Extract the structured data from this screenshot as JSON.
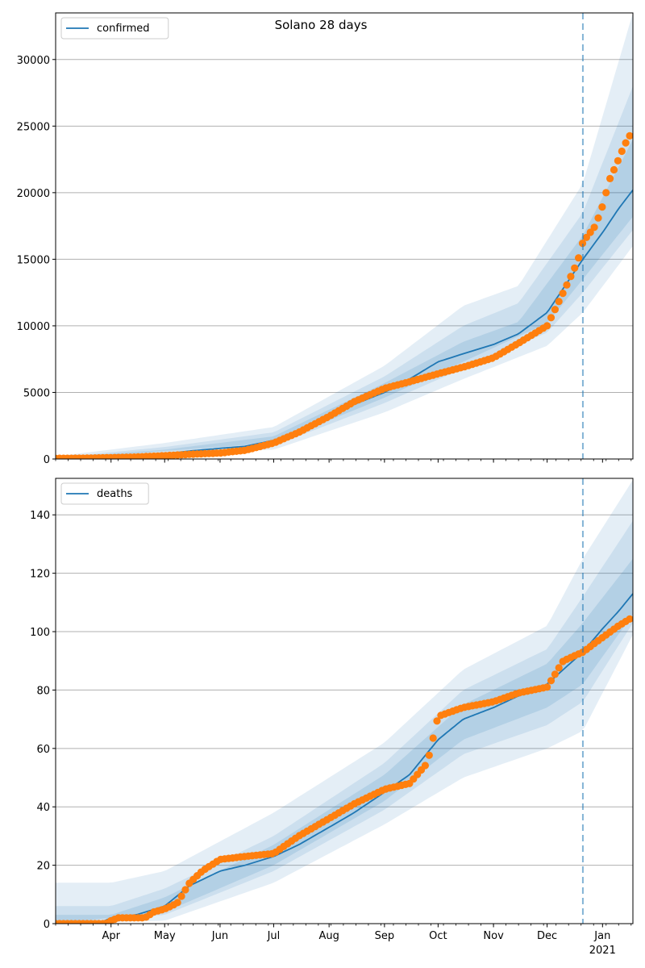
{
  "figure": {
    "title": "Solano 28 days"
  },
  "colors": {
    "band": "#1f77b4",
    "median": "#1f77b4",
    "observed": "#ff7f0e",
    "grid": "#b0b0b0",
    "forecast_line": "#1f77b4"
  },
  "chart_data": [
    {
      "type": "line",
      "title": "Solano 28 days",
      "legend": {
        "placement": "top-left",
        "entries": [
          "confirmed"
        ]
      },
      "grid": "horizontal",
      "x_start": "2020-03-01",
      "x_end": "2021-01-18",
      "forecast_start": "2020-12-21",
      "ylim": [
        0,
        33500
      ],
      "yticks": [
        0,
        5000,
        10000,
        15000,
        20000,
        25000,
        30000
      ],
      "series": [
        {
          "name": "confirmed",
          "kind": "median",
          "points": [
            [
              "2020-03-01",
              10
            ],
            [
              "2020-03-20",
              40
            ],
            [
              "2020-04-05",
              120
            ],
            [
              "2020-04-20",
              250
            ],
            [
              "2020-05-01",
              380
            ],
            [
              "2020-05-15",
              600
            ],
            [
              "2020-06-01",
              800
            ],
            [
              "2020-06-15",
              950
            ],
            [
              "2020-07-01",
              1400
            ],
            [
              "2020-07-15",
              2100
            ],
            [
              "2020-08-01",
              3300
            ],
            [
              "2020-08-15",
              4100
            ],
            [
              "2020-09-01",
              5000
            ],
            [
              "2020-09-15",
              6000
            ],
            [
              "2020-10-01",
              7300
            ],
            [
              "2020-10-15",
              7900
            ],
            [
              "2020-11-01",
              8600
            ],
            [
              "2020-11-15",
              9400
            ],
            [
              "2020-12-01",
              11000
            ],
            [
              "2020-12-10",
              12800
            ],
            [
              "2020-12-21",
              15000
            ],
            [
              "2021-01-01",
              17000
            ],
            [
              "2021-01-10",
              18800
            ],
            [
              "2021-01-18",
              20200
            ]
          ]
        },
        {
          "name": "observed",
          "kind": "observed",
          "points": [
            [
              "2020-03-01",
              50
            ],
            [
              "2020-03-15",
              60
            ],
            [
              "2020-04-01",
              100
            ],
            [
              "2020-04-15",
              150
            ],
            [
              "2020-05-01",
              250
            ],
            [
              "2020-05-15",
              350
            ],
            [
              "2020-06-01",
              450
            ],
            [
              "2020-06-15",
              650
            ],
            [
              "2020-07-01",
              1200
            ],
            [
              "2020-07-15",
              2000
            ],
            [
              "2020-08-01",
              3200
            ],
            [
              "2020-08-15",
              4300
            ],
            [
              "2020-09-01",
              5300
            ],
            [
              "2020-09-15",
              5800
            ],
            [
              "2020-10-01",
              6400
            ],
            [
              "2020-10-15",
              6900
            ],
            [
              "2020-11-01",
              7600
            ],
            [
              "2020-11-15",
              8700
            ],
            [
              "2020-12-01",
              10000
            ],
            [
              "2020-12-10",
              12500
            ],
            [
              "2020-12-18",
              14800
            ],
            [
              "2020-12-21",
              16300
            ],
            [
              "2020-12-28",
              17500
            ],
            [
              "2021-01-01",
              19000
            ],
            [
              "2021-01-05",
              21000
            ],
            [
              "2021-01-09",
              22200
            ],
            [
              "2021-01-13",
              23500
            ],
            [
              "2021-01-18",
              24700
            ]
          ]
        }
      ],
      "bands": [
        {
          "level": "outer",
          "lower": [
            [
              "2020-03-01",
              0
            ],
            [
              "2020-07-01",
              700
            ],
            [
              "2020-09-01",
              3500
            ],
            [
              "2020-10-15",
              6000
            ],
            [
              "2020-12-01",
              8500
            ],
            [
              "2020-12-21",
              11000
            ],
            [
              "2021-01-18",
              16000
            ]
          ],
          "upper": [
            [
              "2020-03-01",
              200
            ],
            [
              "2020-05-01",
              1200
            ],
            [
              "2020-07-01",
              2400
            ],
            [
              "2020-09-01",
              7000
            ],
            [
              "2020-10-15",
              11500
            ],
            [
              "2020-11-15",
              13000
            ],
            [
              "2020-12-21",
              20700
            ],
            [
              "2021-01-18",
              33500
            ]
          ]
        },
        {
          "level": "middle",
          "lower": [
            [
              "2020-03-01",
              0
            ],
            [
              "2020-07-01",
              1000
            ],
            [
              "2020-09-01",
              4200
            ],
            [
              "2020-10-15",
              6800
            ],
            [
              "2020-12-01",
              9500
            ],
            [
              "2020-12-21",
              12500
            ],
            [
              "2021-01-18",
              17200
            ]
          ],
          "upper": [
            [
              "2020-03-01",
              100
            ],
            [
              "2020-05-01",
              900
            ],
            [
              "2020-07-01",
              2000
            ],
            [
              "2020-09-01",
              6200
            ],
            [
              "2020-10-15",
              10000
            ],
            [
              "2020-11-15",
              11700
            ],
            [
              "2020-12-21",
              18500
            ],
            [
              "2021-01-18",
              28000
            ]
          ]
        },
        {
          "level": "inner",
          "lower": [
            [
              "2020-03-01",
              0
            ],
            [
              "2020-07-01",
              1200
            ],
            [
              "2020-09-01",
              4600
            ],
            [
              "2020-10-15",
              7300
            ],
            [
              "2020-12-01",
              10200
            ],
            [
              "2020-12-21",
              13500
            ],
            [
              "2021-01-18",
              18200
            ]
          ],
          "upper": [
            [
              "2020-03-01",
              60
            ],
            [
              "2020-05-01",
              700
            ],
            [
              "2020-07-01",
              1700
            ],
            [
              "2020-09-01",
              5700
            ],
            [
              "2020-10-15",
              8800
            ],
            [
              "2020-11-15",
              10300
            ],
            [
              "2020-12-21",
              16800
            ],
            [
              "2021-01-18",
              24000
            ]
          ]
        }
      ]
    },
    {
      "type": "line",
      "legend": {
        "placement": "top-left",
        "entries": [
          "deaths"
        ]
      },
      "grid": "horizontal",
      "x_start": "2020-03-01",
      "x_end": "2021-01-18",
      "forecast_start": "2020-12-21",
      "ylim": [
        0,
        152.5
      ],
      "yticks": [
        0,
        20,
        40,
        60,
        80,
        100,
        120,
        140
      ],
      "xticks": [
        {
          "date": "2020-04-01",
          "label": "Apr"
        },
        {
          "date": "2020-05-01",
          "label": "May"
        },
        {
          "date": "2020-06-01",
          "label": "Jun"
        },
        {
          "date": "2020-07-01",
          "label": "Jul"
        },
        {
          "date": "2020-08-01",
          "label": "Aug"
        },
        {
          "date": "2020-09-01",
          "label": "Sep"
        },
        {
          "date": "2020-10-01",
          "label": "Oct"
        },
        {
          "date": "2020-11-01",
          "label": "Nov"
        },
        {
          "date": "2020-12-01",
          "label": "Dec"
        },
        {
          "date": "2021-01-01",
          "label": "Jan",
          "sublabel": "2021"
        }
      ],
      "series": [
        {
          "name": "deaths",
          "kind": "median",
          "points": [
            [
              "2020-03-01",
              0
            ],
            [
              "2020-03-25",
              0
            ],
            [
              "2020-04-01",
              2
            ],
            [
              "2020-04-15",
              3
            ],
            [
              "2020-05-01",
              6
            ],
            [
              "2020-05-15",
              13
            ],
            [
              "2020-06-01",
              18
            ],
            [
              "2020-06-15",
              20
            ],
            [
              "2020-07-01",
              23
            ],
            [
              "2020-07-15",
              27
            ],
            [
              "2020-08-01",
              33
            ],
            [
              "2020-08-15",
              38
            ],
            [
              "2020-09-01",
              45
            ],
            [
              "2020-09-15",
              51
            ],
            [
              "2020-10-01",
              63
            ],
            [
              "2020-10-15",
              70
            ],
            [
              "2020-11-01",
              74
            ],
            [
              "2020-11-15",
              78
            ],
            [
              "2020-12-01",
              82
            ],
            [
              "2020-12-10",
              87
            ],
            [
              "2020-12-21",
              93
            ],
            [
              "2021-01-01",
              101
            ],
            [
              "2021-01-10",
              107
            ],
            [
              "2021-01-18",
              113
            ]
          ]
        },
        {
          "name": "observed",
          "kind": "observed",
          "points": [
            [
              "2020-03-01",
              0
            ],
            [
              "2020-03-29",
              0
            ],
            [
              "2020-04-01",
              1
            ],
            [
              "2020-04-05",
              2
            ],
            [
              "2020-04-20",
              2
            ],
            [
              "2020-04-25",
              4
            ],
            [
              "2020-05-01",
              5
            ],
            [
              "2020-05-08",
              7
            ],
            [
              "2020-05-15",
              14
            ],
            [
              "2020-05-22",
              18
            ],
            [
              "2020-06-01",
              22
            ],
            [
              "2020-06-15",
              23
            ],
            [
              "2020-07-01",
              24
            ],
            [
              "2020-07-15",
              30
            ],
            [
              "2020-08-01",
              36
            ],
            [
              "2020-08-15",
              41
            ],
            [
              "2020-09-01",
              46
            ],
            [
              "2020-09-15",
              48
            ],
            [
              "2020-09-25",
              55
            ],
            [
              "2020-10-01",
              71
            ],
            [
              "2020-10-15",
              74
            ],
            [
              "2020-11-01",
              76
            ],
            [
              "2020-11-15",
              79
            ],
            [
              "2020-12-01",
              81
            ],
            [
              "2020-12-10",
              90
            ],
            [
              "2020-12-21",
              93
            ],
            [
              "2021-01-01",
              98
            ],
            [
              "2021-01-10",
              102
            ],
            [
              "2021-01-18",
              105
            ]
          ]
        }
      ],
      "bands": [
        {
          "level": "outer",
          "lower": [
            [
              "2020-03-01",
              0
            ],
            [
              "2020-05-01",
              1
            ],
            [
              "2020-07-01",
              14
            ],
            [
              "2020-09-01",
              34
            ],
            [
              "2020-10-15",
              50
            ],
            [
              "2020-12-01",
              60
            ],
            [
              "2020-12-21",
              66
            ],
            [
              "2021-01-18",
              99
            ]
          ],
          "upper": [
            [
              "2020-03-01",
              14
            ],
            [
              "2020-04-01",
              14
            ],
            [
              "2020-05-01",
              18
            ],
            [
              "2020-07-01",
              38
            ],
            [
              "2020-09-01",
              62
            ],
            [
              "2020-10-15",
              87
            ],
            [
              "2020-12-01",
              102
            ],
            [
              "2020-12-21",
              125
            ],
            [
              "2021-01-18",
              152
            ]
          ]
        },
        {
          "level": "middle",
          "lower": [
            [
              "2020-03-01",
              0
            ],
            [
              "2020-05-01",
              3
            ],
            [
              "2020-07-01",
              18
            ],
            [
              "2020-09-01",
              39
            ],
            [
              "2020-10-15",
              58
            ],
            [
              "2020-12-01",
              68
            ],
            [
              "2020-12-21",
              76
            ],
            [
              "2021-01-18",
              103
            ]
          ],
          "upper": [
            [
              "2020-03-01",
              6
            ],
            [
              "2020-04-01",
              6
            ],
            [
              "2020-05-01",
              12
            ],
            [
              "2020-07-01",
              30
            ],
            [
              "2020-09-01",
              55
            ],
            [
              "2020-10-15",
              80
            ],
            [
              "2020-12-01",
              94
            ],
            [
              "2020-12-21",
              112
            ],
            [
              "2021-01-18",
              138
            ]
          ]
        },
        {
          "level": "inner",
          "lower": [
            [
              "2020-03-01",
              0
            ],
            [
              "2020-05-01",
              4
            ],
            [
              "2020-07-01",
              20
            ],
            [
              "2020-09-01",
              42
            ],
            [
              "2020-10-15",
              63
            ],
            [
              "2020-12-01",
              74
            ],
            [
              "2020-12-21",
              82
            ],
            [
              "2021-01-18",
              106
            ]
          ],
          "upper": [
            [
              "2020-03-01",
              3
            ],
            [
              "2020-04-01",
              3
            ],
            [
              "2020-05-01",
              9
            ],
            [
              "2020-07-01",
              27
            ],
            [
              "2020-09-01",
              51
            ],
            [
              "2020-10-15",
              75
            ],
            [
              "2020-12-01",
              89
            ],
            [
              "2020-12-21",
              103
            ],
            [
              "2021-01-18",
              125
            ]
          ]
        }
      ]
    }
  ]
}
